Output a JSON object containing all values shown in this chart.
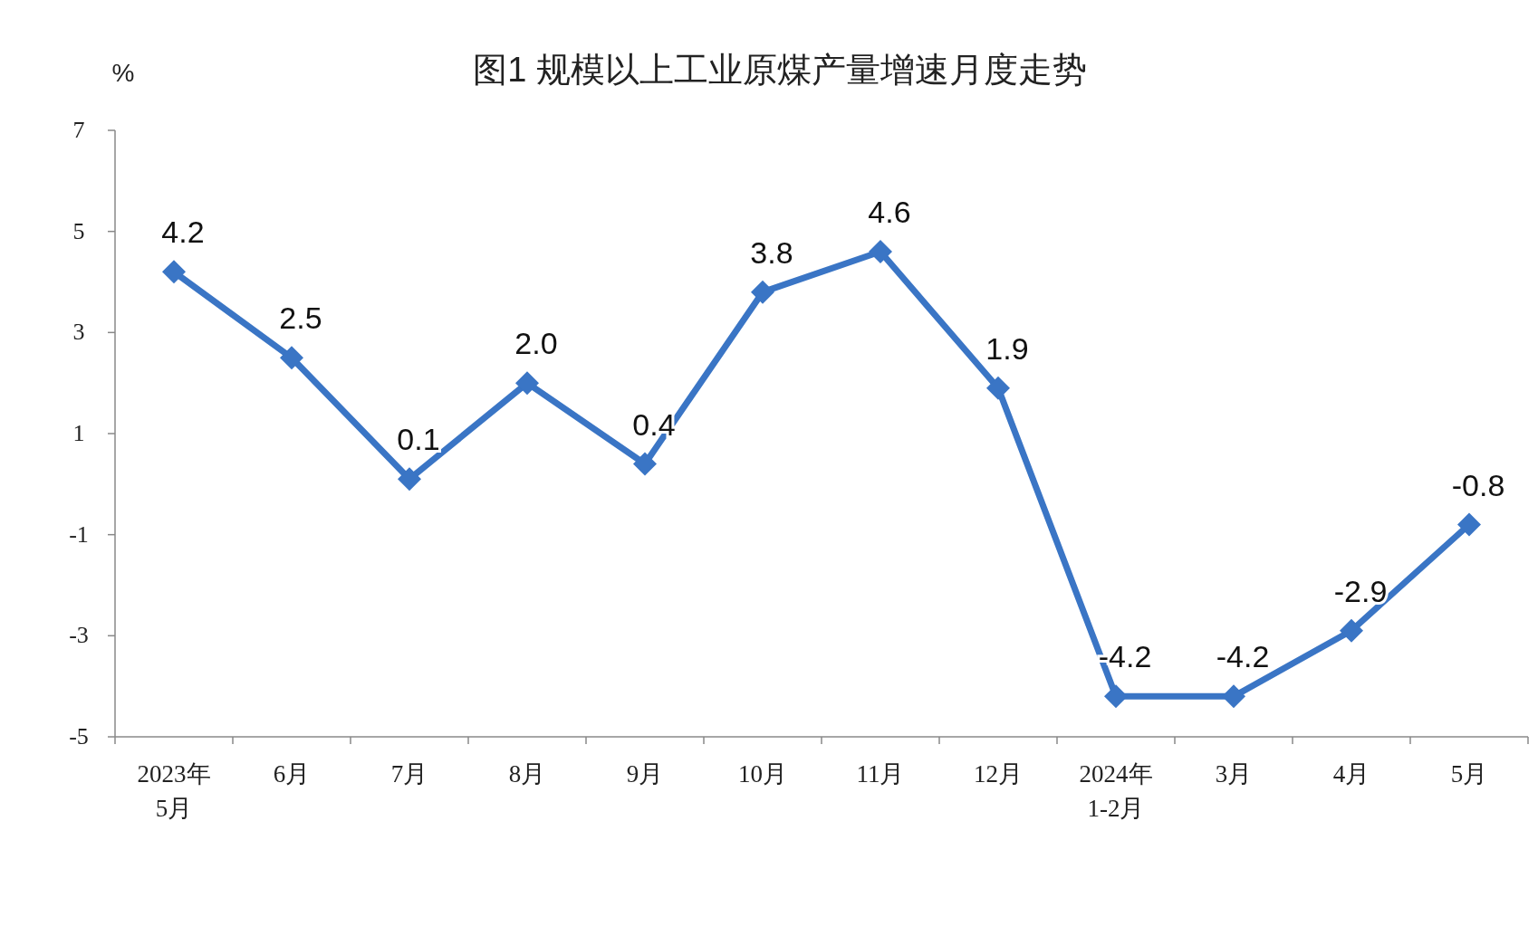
{
  "chart_data": {
    "type": "line",
    "title": "图1  规模以上工业原煤产量增速月度走势",
    "ylabel": "%",
    "categories": [
      "2023年\n5月",
      "6月",
      "7月",
      "8月",
      "9月",
      "10月",
      "11月",
      "12月",
      "2024年\n1-2月",
      "3月",
      "4月",
      "5月"
    ],
    "series": [
      {
        "color": "#3a75c5",
        "values": [
          4.2,
          2.5,
          0.1,
          2.0,
          0.4,
          3.8,
          4.6,
          1.9,
          -4.2,
          -4.2,
          -2.9,
          -0.8
        ]
      }
    ],
    "value_labels": [
      "4.2",
      "2.5",
      "0.1",
      "2.0",
      "0.4",
      "3.8",
      "4.6",
      "1.9",
      "-4.2",
      "-4.2",
      "-2.9",
      "-0.8"
    ],
    "ylim": [
      -5,
      7
    ],
    "yticks": [
      -5,
      -3,
      -1,
      1,
      3,
      5,
      7
    ],
    "grid": false,
    "marker": "diamond",
    "line_style": "solid"
  }
}
